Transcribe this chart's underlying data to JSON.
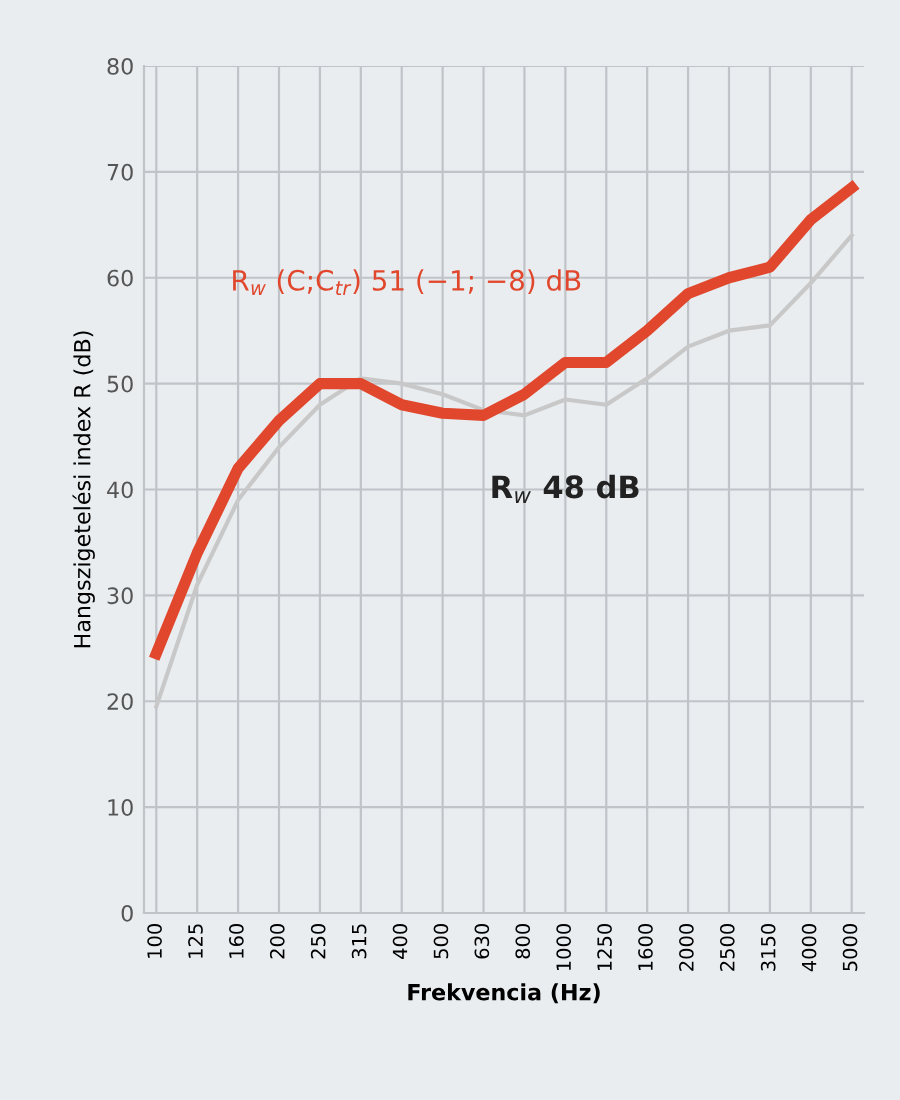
{
  "chart_data": {
    "type": "line",
    "xlabel": "Frekvencia (Hz)",
    "ylabel": "Hangszigetelési index R (dB)",
    "categories": [
      "100",
      "125",
      "160",
      "200",
      "250",
      "315",
      "400",
      "500",
      "630",
      "800",
      "1000",
      "1250",
      "1600",
      "2000",
      "2500",
      "3150",
      "4000",
      "5000"
    ],
    "series": [
      {
        "color": "#c8c8c8",
        "values": [
          19.5,
          31,
          39,
          44,
          48,
          50.5,
          50,
          49,
          47.5,
          47,
          48.5,
          48,
          50.5,
          53.5,
          55,
          55.5,
          59.5,
          64
        ]
      },
      {
        "color": "#e0472c",
        "values": [
          24.5,
          34,
          42,
          46.5,
          50,
          50,
          48,
          47.2,
          47,
          49,
          52,
          52,
          55,
          58.5,
          60,
          61,
          65.5,
          68.5
        ]
      }
    ],
    "ylim": [
      0,
      80
    ],
    "yticks": [
      0,
      10,
      20,
      30,
      40,
      50,
      60,
      70,
      80
    ],
    "grid": true,
    "marker": "none",
    "line_style": "solid",
    "annotations": [
      "R$_{w}$ (C;C$_{tr}$) 51 (−1; −8) dB",
      "R$_{w}$ 48 dB"
    ]
  }
}
